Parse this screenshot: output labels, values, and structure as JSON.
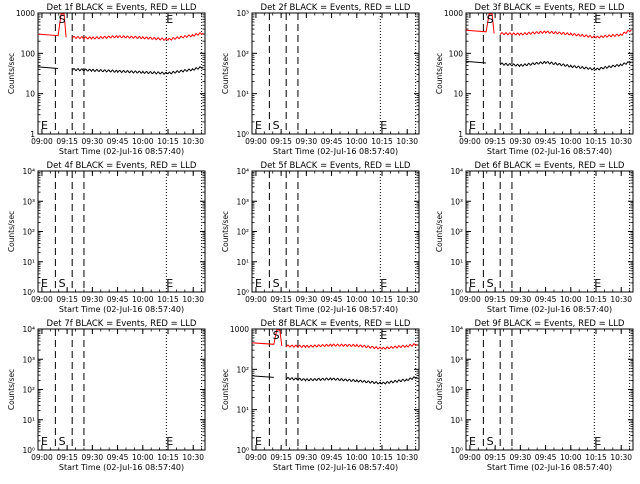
{
  "start_time_label": "Start Time (02-Jul-16 08:57:40)",
  "ylabel": "Counts/sec",
  "x_ticks": [
    "09:00",
    "09:15",
    "09:30",
    "09:45",
    "10:00",
    "10:15",
    "10:30"
  ],
  "x_range": [
    "08:57:40",
    "10:37:00"
  ],
  "legend_colors": {
    "events": "#000000",
    "lld": "#ff0000"
  },
  "markers": {
    "S": {
      "label": "S",
      "time": "09:12"
    },
    "E": {
      "label": "E",
      "time": "10:16"
    }
  },
  "vlines": {
    "dashed": [
      "09:08",
      "09:18",
      "09:25"
    ],
    "dotted": [
      "10:14",
      "10:35"
    ]
  },
  "chart_data": [
    {
      "type": "line",
      "title": "Det 1f BLACK = Events, RED = LLD",
      "y_scale": "log",
      "ylim": [
        1,
        1000
      ],
      "y_ticks": [
        "1",
        "10",
        "100",
        "1000"
      ],
      "has_data": true,
      "spike_time": "09:12",
      "series": [
        {
          "name": "Events",
          "color": "#000000",
          "x": [
            "09:18",
            "09:30",
            "09:45",
            "10:00",
            "10:15",
            "10:30",
            "10:36"
          ],
          "values": [
            40,
            38,
            36,
            34,
            32,
            40,
            46
          ]
        },
        {
          "name": "LLD",
          "color": "#ff0000",
          "x": [
            "09:18",
            "09:30",
            "09:45",
            "10:00",
            "10:15",
            "10:30",
            "10:36"
          ],
          "values": [
            250,
            240,
            260,
            245,
            220,
            280,
            320
          ]
        }
      ]
    },
    {
      "type": "line",
      "title": "Det 2f BLACK = Events, RED = LLD",
      "y_scale": "log",
      "ylim": [
        1,
        1000
      ],
      "y_ticks": [
        "10⁰",
        "10¹",
        "10²",
        "10³"
      ],
      "has_data": false,
      "series": []
    },
    {
      "type": "line",
      "title": "Det 3f BLACK = Events, RED = LLD",
      "y_scale": "log",
      "ylim": [
        1,
        1000
      ],
      "y_ticks": [
        "1",
        "10",
        "100",
        "1000"
      ],
      "has_data": true,
      "spike_time": "09:12",
      "series": [
        {
          "name": "Events",
          "color": "#000000",
          "x": [
            "09:18",
            "09:30",
            "09:45",
            "10:00",
            "10:15",
            "10:30",
            "10:36"
          ],
          "values": [
            55,
            50,
            60,
            48,
            40,
            52,
            62
          ]
        },
        {
          "name": "LLD",
          "color": "#ff0000",
          "x": [
            "09:18",
            "09:30",
            "09:45",
            "10:00",
            "10:15",
            "10:30",
            "10:36"
          ],
          "values": [
            310,
            300,
            340,
            300,
            250,
            290,
            380
          ]
        }
      ]
    },
    {
      "type": "line",
      "title": "Det 4f BLACK = Events, RED = LLD",
      "y_scale": "log",
      "ylim": [
        1,
        10000
      ],
      "y_ticks": [
        "10⁰",
        "10¹",
        "10²",
        "10³",
        "10⁴"
      ],
      "has_data": false,
      "series": []
    },
    {
      "type": "line",
      "title": "Det 5f BLACK = Events, RED = LLD",
      "y_scale": "log",
      "ylim": [
        1,
        10000
      ],
      "y_ticks": [
        "10⁰",
        "10¹",
        "10²",
        "10³",
        "10⁴"
      ],
      "has_data": false,
      "series": []
    },
    {
      "type": "line",
      "title": "Det 6f BLACK = Events, RED = LLD",
      "y_scale": "log",
      "ylim": [
        1,
        10000
      ],
      "y_ticks": [
        "10⁰",
        "10¹",
        "10²",
        "10³",
        "10⁴"
      ],
      "has_data": false,
      "series": []
    },
    {
      "type": "line",
      "title": "Det 7f BLACK = Events, RED = LLD",
      "y_scale": "log",
      "ylim": [
        1,
        10000
      ],
      "y_ticks": [
        "10⁰",
        "10¹",
        "10²",
        "10³",
        "10⁴"
      ],
      "has_data": false,
      "series": []
    },
    {
      "type": "line",
      "title": "Det 8f BLACK = Events, RED = LLD",
      "y_scale": "log",
      "ylim": [
        1,
        1000
      ],
      "y_ticks": [
        "10⁰",
        "10¹",
        "10²",
        "1000"
      ],
      "has_data": true,
      "spike_time": "09:13",
      "series": [
        {
          "name": "Events",
          "color": "#000000",
          "x": [
            "09:18",
            "09:30",
            "09:45",
            "10:00",
            "10:15",
            "10:30",
            "10:36"
          ],
          "values": [
            60,
            55,
            58,
            52,
            45,
            55,
            65
          ]
        },
        {
          "name": "LLD",
          "color": "#ff0000",
          "x": [
            "09:18",
            "09:30",
            "09:45",
            "10:00",
            "10:15",
            "10:30",
            "10:36"
          ],
          "values": [
            380,
            370,
            400,
            390,
            330,
            380,
            420
          ]
        }
      ]
    },
    {
      "type": "line",
      "title": "Det 9f BLACK = Events, RED = LLD",
      "y_scale": "log",
      "ylim": [
        1,
        10000
      ],
      "y_ticks": [
        "10⁰",
        "10¹",
        "10²",
        "10³",
        "10⁴"
      ],
      "has_data": false,
      "series": []
    }
  ]
}
